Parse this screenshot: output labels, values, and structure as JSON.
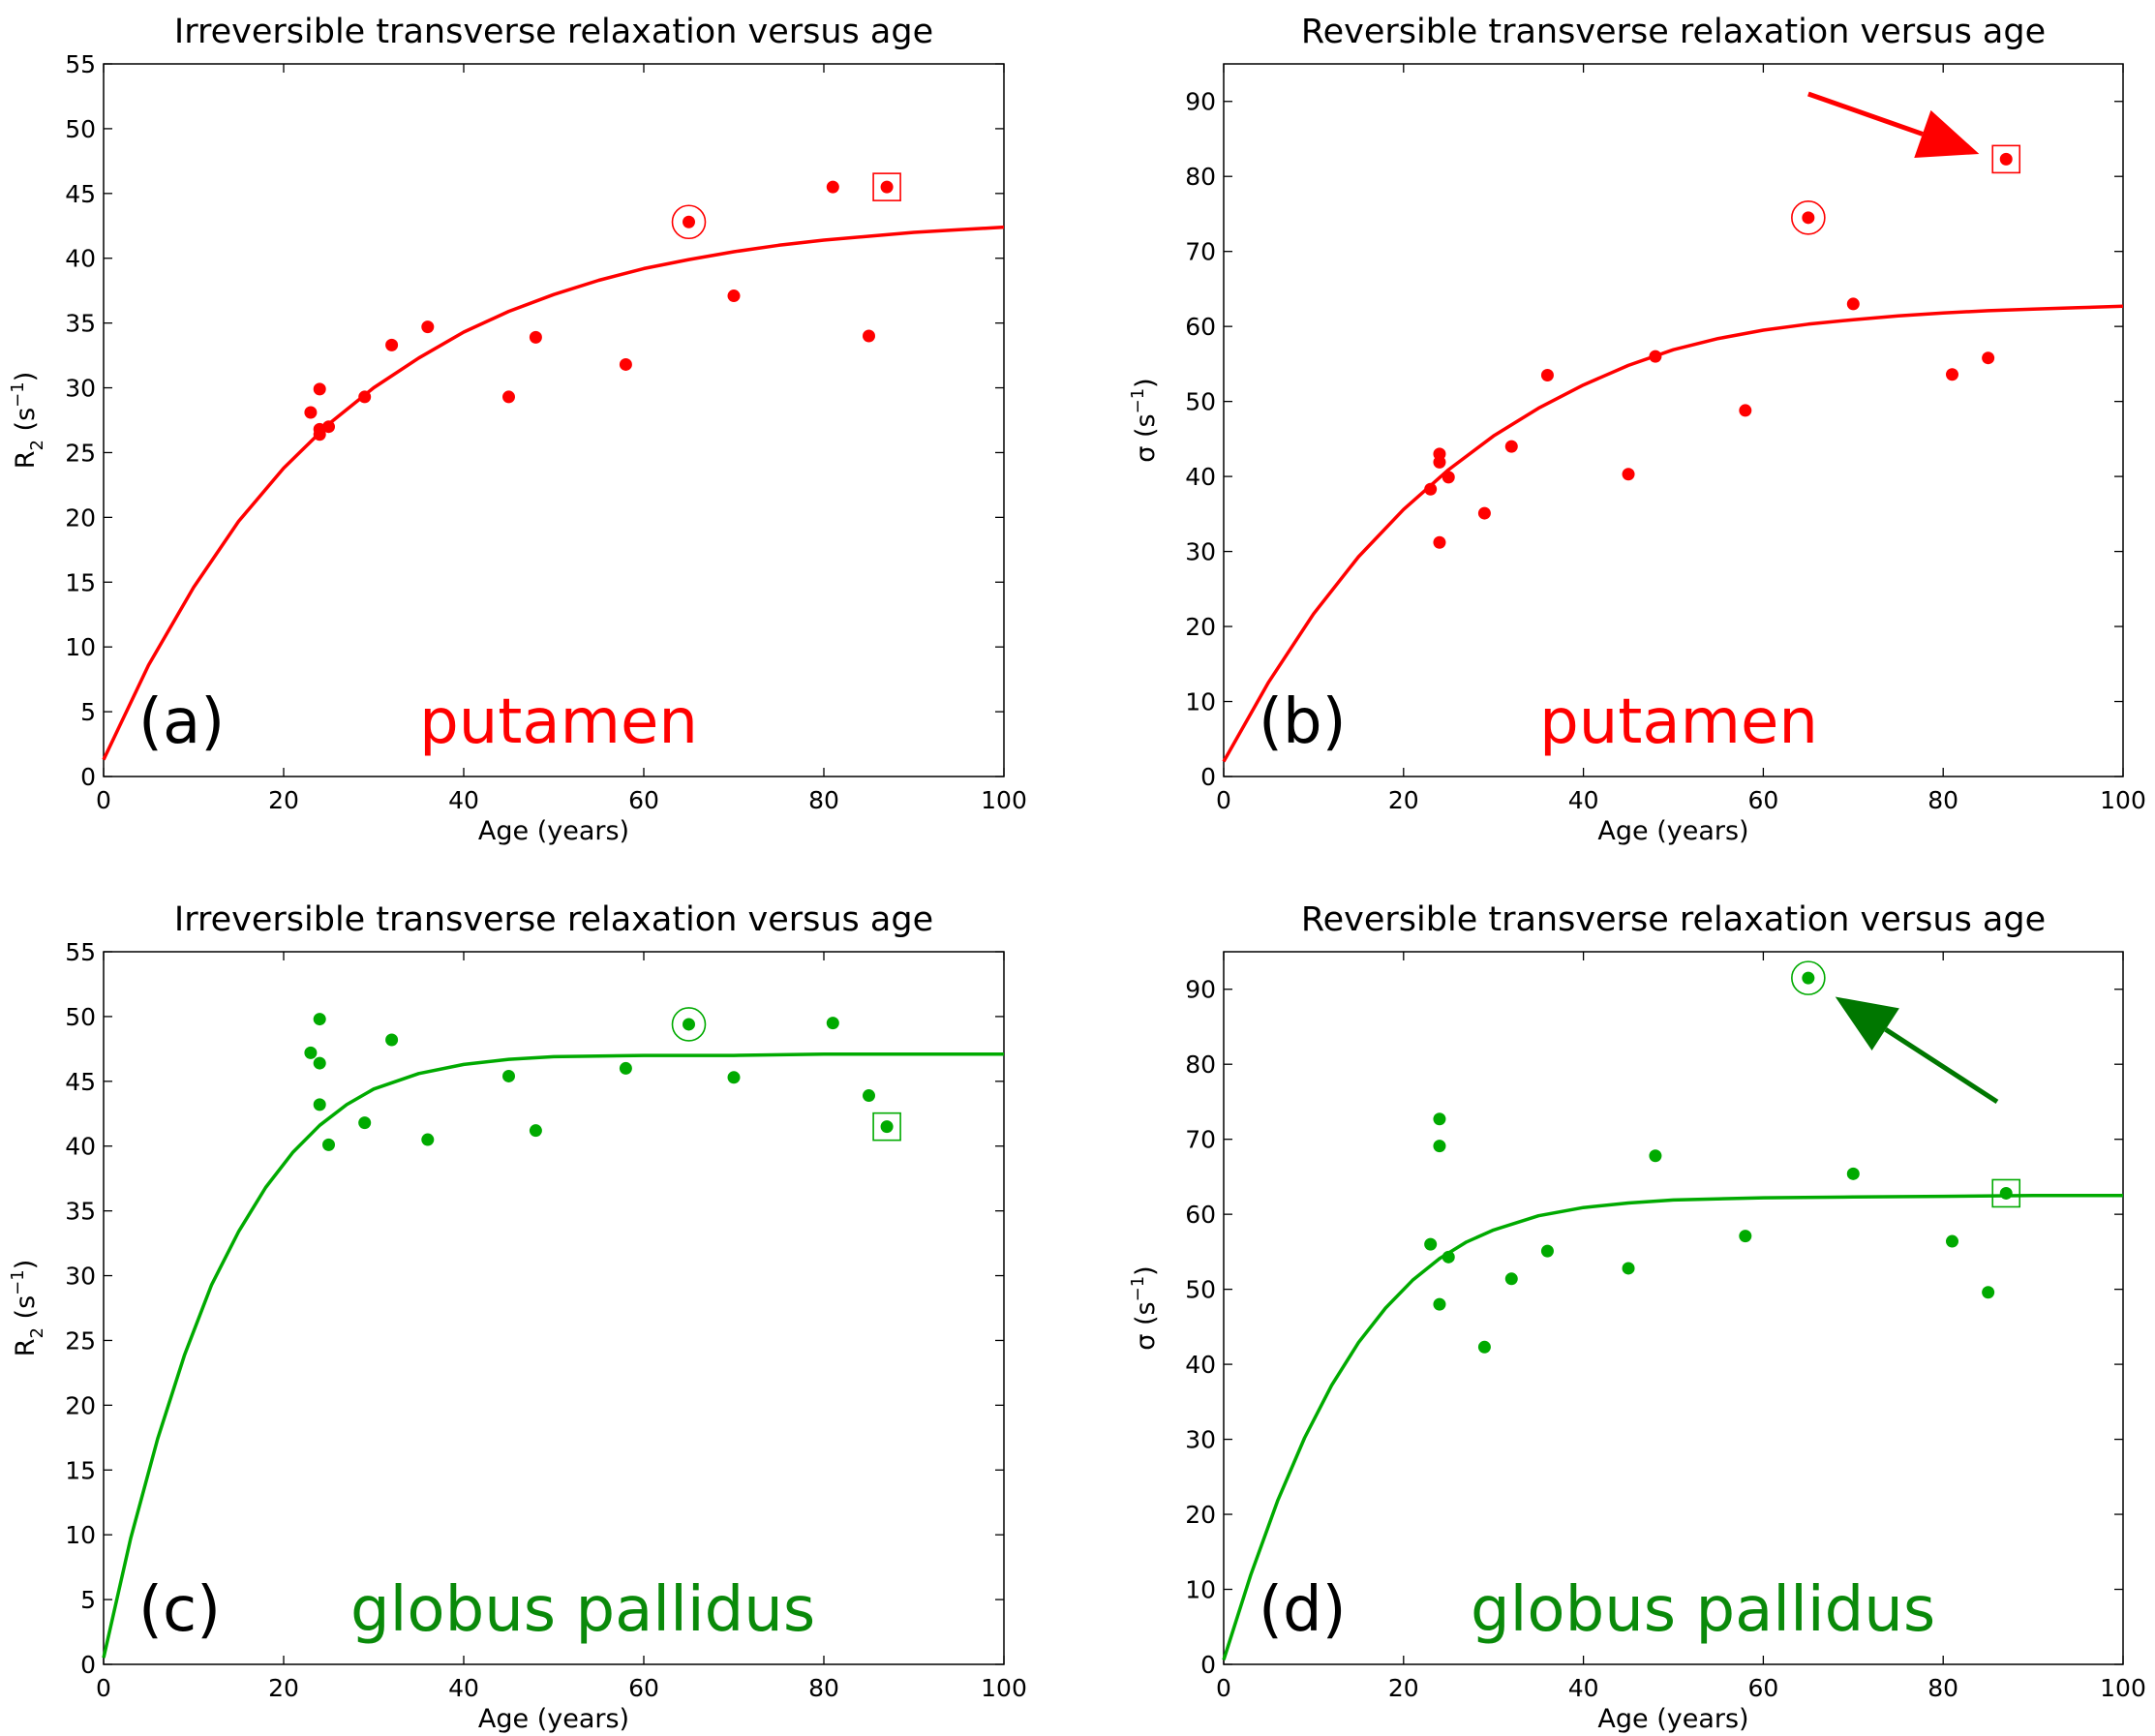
{
  "chart_data": [
    {
      "type": "scatter",
      "panel_label": "(a)",
      "region_label": "putamen",
      "title": "Irreversible transverse relaxation versus age",
      "xlabel": "Age (years)",
      "ylabel_main": "R",
      "ylabel_sub": "2",
      "ylabel_unit_open": " (s",
      "ylabel_sup": "−1",
      "ylabel_unit_close": ")",
      "xlim": [
        0,
        100
      ],
      "ylim": [
        0,
        55
      ],
      "xticks": [
        "0",
        "20",
        "40",
        "60",
        "80",
        "100"
      ],
      "yticks": [
        "0",
        "5",
        "10",
        "15",
        "20",
        "25",
        "30",
        "35",
        "40",
        "45",
        "50",
        "55"
      ],
      "color": "#ff0000",
      "fit_curve": [
        [
          0,
          1.3
        ],
        [
          5,
          8.6
        ],
        [
          10,
          14.6
        ],
        [
          15,
          19.7
        ],
        [
          20,
          23.8
        ],
        [
          25,
          27.2
        ],
        [
          30,
          30.0
        ],
        [
          35,
          32.3
        ],
        [
          40,
          34.3
        ],
        [
          45,
          35.9
        ],
        [
          50,
          37.2
        ],
        [
          55,
          38.3
        ],
        [
          60,
          39.2
        ],
        [
          65,
          39.9
        ],
        [
          70,
          40.5
        ],
        [
          75,
          41.0
        ],
        [
          80,
          41.4
        ],
        [
          85,
          41.7
        ],
        [
          90,
          42.0
        ],
        [
          95,
          42.2
        ],
        [
          100,
          42.4
        ]
      ],
      "points": [
        [
          23,
          28.1
        ],
        [
          24,
          29.9
        ],
        [
          24,
          26.8
        ],
        [
          24,
          26.4
        ],
        [
          25,
          27.0
        ],
        [
          29,
          29.3
        ],
        [
          32,
          33.3
        ],
        [
          36,
          34.7
        ],
        [
          45,
          29.3
        ],
        [
          48,
          33.9
        ],
        [
          58,
          31.8
        ],
        [
          65,
          42.8
        ],
        [
          70,
          37.1
        ],
        [
          81,
          45.5
        ],
        [
          85,
          34.0
        ],
        [
          87,
          45.5
        ]
      ],
      "circled_point": [
        65,
        42.8
      ],
      "boxed_point": [
        87,
        45.5
      ],
      "arrow": null
    },
    {
      "type": "scatter",
      "panel_label": "(b)",
      "region_label": "putamen",
      "title": "Reversible transverse relaxation versus age",
      "xlabel": "Age (years)",
      "ylabel_main": "σ",
      "ylabel_sub": "",
      "ylabel_unit_open": " (s",
      "ylabel_sup": "−1",
      "ylabel_unit_close": ")",
      "xlim": [
        0,
        100
      ],
      "ylim": [
        0,
        95
      ],
      "xticks": [
        "0",
        "20",
        "40",
        "60",
        "80",
        "100"
      ],
      "yticks": [
        "0",
        "10",
        "20",
        "30",
        "40",
        "50",
        "60",
        "70",
        "80",
        "90"
      ],
      "color": "#ff0000",
      "fit_curve": [
        [
          0,
          2.0
        ],
        [
          5,
          12.6
        ],
        [
          10,
          21.7
        ],
        [
          15,
          29.3
        ],
        [
          20,
          35.6
        ],
        [
          25,
          40.9
        ],
        [
          30,
          45.4
        ],
        [
          35,
          49.1
        ],
        [
          40,
          52.2
        ],
        [
          45,
          54.8
        ],
        [
          50,
          56.9
        ],
        [
          55,
          58.4
        ],
        [
          60,
          59.5
        ],
        [
          65,
          60.3
        ],
        [
          70,
          60.9
        ],
        [
          75,
          61.4
        ],
        [
          80,
          61.8
        ],
        [
          85,
          62.1
        ],
        [
          90,
          62.3
        ],
        [
          95,
          62.5
        ],
        [
          100,
          62.7
        ]
      ],
      "points": [
        [
          23,
          38.3
        ],
        [
          24,
          43.0
        ],
        [
          24,
          41.9
        ],
        [
          24,
          31.2
        ],
        [
          25,
          39.9
        ],
        [
          29,
          35.1
        ],
        [
          32,
          44.0
        ],
        [
          36,
          53.5
        ],
        [
          45,
          40.3
        ],
        [
          48,
          56.0
        ],
        [
          58,
          48.8
        ],
        [
          65,
          74.5
        ],
        [
          70,
          63.0
        ],
        [
          81,
          53.6
        ],
        [
          85,
          55.8
        ],
        [
          87,
          82.3
        ]
      ],
      "circled_point": [
        65,
        74.5
      ],
      "boxed_point": [
        87,
        82.3
      ],
      "arrow": {
        "from": [
          65,
          91.0
        ],
        "to": [
          84,
          83.0
        ],
        "color": "#ff0000"
      }
    },
    {
      "type": "scatter",
      "panel_label": "(c)",
      "region_label": "globus pallidus",
      "title": "Irreversible transverse relaxation versus age",
      "xlabel": "Age (years)",
      "ylabel_main": "R",
      "ylabel_sub": "2",
      "ylabel_unit_open": " (s",
      "ylabel_sup": "−1",
      "ylabel_unit_close": ")",
      "xlim": [
        0,
        100
      ],
      "ylim": [
        0,
        55
      ],
      "xticks": [
        "0",
        "20",
        "40",
        "60",
        "80",
        "100"
      ],
      "yticks": [
        "0",
        "5",
        "10",
        "15",
        "20",
        "25",
        "30",
        "35",
        "40",
        "45",
        "50",
        "55"
      ],
      "color": "#00aa00",
      "fit_curve": [
        [
          0,
          0.5
        ],
        [
          3,
          9.7
        ],
        [
          6,
          17.4
        ],
        [
          9,
          23.9
        ],
        [
          12,
          29.3
        ],
        [
          15,
          33.4
        ],
        [
          18,
          36.8
        ],
        [
          21,
          39.5
        ],
        [
          24,
          41.6
        ],
        [
          27,
          43.2
        ],
        [
          30,
          44.4
        ],
        [
          35,
          45.6
        ],
        [
          40,
          46.3
        ],
        [
          45,
          46.7
        ],
        [
          50,
          46.9
        ],
        [
          60,
          47.0
        ],
        [
          70,
          47.0
        ],
        [
          80,
          47.1
        ],
        [
          90,
          47.1
        ],
        [
          100,
          47.1
        ]
      ],
      "points": [
        [
          23,
          47.2
        ],
        [
          24,
          49.8
        ],
        [
          24,
          46.4
        ],
        [
          24,
          43.2
        ],
        [
          25,
          40.1
        ],
        [
          29,
          41.8
        ],
        [
          32,
          48.2
        ],
        [
          36,
          40.5
        ],
        [
          45,
          45.4
        ],
        [
          48,
          41.2
        ],
        [
          58,
          46.0
        ],
        [
          65,
          49.4
        ],
        [
          70,
          45.3
        ],
        [
          81,
          49.5
        ],
        [
          85,
          43.9
        ],
        [
          87,
          41.5
        ]
      ],
      "circled_point": [
        65,
        49.4
      ],
      "boxed_point": [
        87,
        41.5
      ],
      "arrow": null
    },
    {
      "type": "scatter",
      "panel_label": "(d)",
      "region_label": "globus pallidus",
      "title": "Reversible transverse relaxation versus age",
      "xlabel": "Age (years)",
      "ylabel_main": "σ",
      "ylabel_sub": "",
      "ylabel_unit_open": " (s",
      "ylabel_sup": "−1",
      "ylabel_unit_close": ")",
      "xlim": [
        0,
        100
      ],
      "ylim": [
        0,
        95
      ],
      "xticks": [
        "0",
        "20",
        "40",
        "60",
        "80",
        "100"
      ],
      "yticks": [
        "0",
        "10",
        "20",
        "30",
        "40",
        "50",
        "60",
        "70",
        "80",
        "90"
      ],
      "color": "#00aa00",
      "fit_curve": [
        [
          0,
          0.6
        ],
        [
          3,
          11.9
        ],
        [
          6,
          21.8
        ],
        [
          9,
          30.2
        ],
        [
          12,
          37.2
        ],
        [
          15,
          42.9
        ],
        [
          18,
          47.5
        ],
        [
          21,
          51.2
        ],
        [
          24,
          54.1
        ],
        [
          27,
          56.3
        ],
        [
          30,
          57.9
        ],
        [
          35,
          59.8
        ],
        [
          40,
          60.9
        ],
        [
          45,
          61.5
        ],
        [
          50,
          61.9
        ],
        [
          60,
          62.2
        ],
        [
          70,
          62.3
        ],
        [
          80,
          62.4
        ],
        [
          90,
          62.5
        ],
        [
          100,
          62.5
        ]
      ],
      "points": [
        [
          23,
          56.0
        ],
        [
          24,
          72.7
        ],
        [
          24,
          69.1
        ],
        [
          24,
          48.0
        ],
        [
          25,
          54.3
        ],
        [
          29,
          42.3
        ],
        [
          32,
          51.4
        ],
        [
          36,
          55.1
        ],
        [
          45,
          52.8
        ],
        [
          48,
          67.8
        ],
        [
          58,
          57.1
        ],
        [
          65,
          91.5
        ],
        [
          70,
          65.4
        ],
        [
          81,
          56.4
        ],
        [
          85,
          49.6
        ],
        [
          87,
          62.8
        ]
      ],
      "circled_point": [
        65,
        91.5
      ],
      "boxed_point": [
        87,
        62.8
      ],
      "arrow": {
        "from": [
          86,
          75.0
        ],
        "to": [
          68,
          89.0
        ],
        "color": "#007700"
      }
    }
  ]
}
